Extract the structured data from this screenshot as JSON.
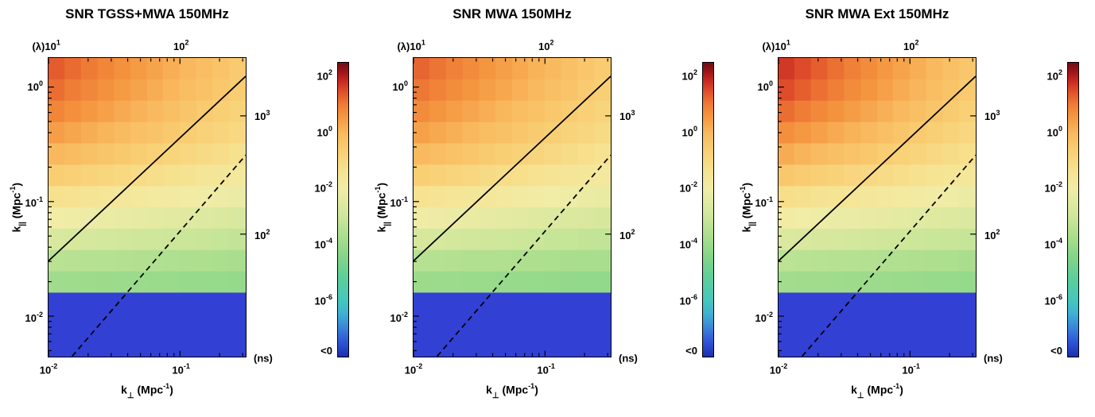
{
  "page": {
    "background": "#ffffff"
  },
  "labels": {
    "xlabel": {
      "pre": "k",
      "sub": "⊥",
      "mid": " (Mpc",
      "sup": "-1",
      "post": ")"
    },
    "ylabel": {
      "pre": "k",
      "sub": "||",
      "mid": " (Mpc",
      "sup": "-1",
      "post": ")"
    },
    "top_prefix": "(λ)",
    "right_unit": "(ns)"
  },
  "colorbar": {
    "scale": "log10(SNR)",
    "vmin": -8,
    "vmax": 2.5,
    "ticks": [
      {
        "base": "10",
        "exp": "2",
        "v": 2
      },
      {
        "base": "10",
        "exp": "0",
        "v": 0
      },
      {
        "base": "10",
        "exp": "-2",
        "v": -2
      },
      {
        "base": "10",
        "exp": "-4",
        "v": -4
      },
      {
        "base": "10",
        "exp": "-6",
        "v": -6
      }
    ],
    "below_label": "<0",
    "below_color": "#3340d4",
    "stops": [
      {
        "t": 0.0,
        "c": "#1b2fae"
      },
      {
        "t": 0.05,
        "c": "#2f54d8"
      },
      {
        "t": 0.1,
        "c": "#3a86d8"
      },
      {
        "t": 0.15,
        "c": "#3fb4d2"
      },
      {
        "t": 0.19,
        "c": "#44c7bd"
      },
      {
        "t": 0.27,
        "c": "#5ecf9a"
      },
      {
        "t": 0.33,
        "c": "#7ed489"
      },
      {
        "t": 0.4,
        "c": "#a5dd8c"
      },
      {
        "t": 0.48,
        "c": "#cfe79b"
      },
      {
        "t": 0.57,
        "c": "#f1eca6"
      },
      {
        "t": 0.63,
        "c": "#f6e392"
      },
      {
        "t": 0.7,
        "c": "#f9cf74"
      },
      {
        "t": 0.76,
        "c": "#f9b95e"
      },
      {
        "t": 0.82,
        "c": "#f4953f"
      },
      {
        "t": 0.86,
        "c": "#ee7a35"
      },
      {
        "t": 0.9,
        "c": "#e1512b"
      },
      {
        "t": 0.94,
        "c": "#c62721"
      },
      {
        "t": 0.97,
        "c": "#9c1418"
      },
      {
        "t": 1.0,
        "c": "#6f0d16"
      }
    ]
  },
  "chart_data": [
    {
      "type": "heatmap",
      "title": "SNR TGSS+MWA 150MHz",
      "xlabel": "k_perp (Mpc^-1)",
      "ylabel": "k_parallel (Mpc^-1)",
      "top_axis_unit": "(λ)",
      "right_axis_unit": "(ns)",
      "values": "log10(SNR), rows top-to-bottom, each row [left,right] gradient, null = below 0 (blue)",
      "x_log_range": [
        -2,
        -0.5
      ],
      "y_log_range": [
        -2.35,
        0.25
      ],
      "x_ticks": [
        {
          "base": "10",
          "exp": "-2",
          "v": -2
        },
        {
          "base": "10",
          "exp": "-1",
          "v": -1
        }
      ],
      "y_ticks": [
        {
          "base": "10",
          "exp": "0",
          "v": 0
        },
        {
          "base": "10",
          "exp": "-1",
          "v": -1
        },
        {
          "base": "10",
          "exp": "-2",
          "v": -2
        }
      ],
      "top_axis": {
        "ticks": [
          {
            "base": "10",
            "exp": "1",
            "frac": 0.0
          },
          {
            "base": "10",
            "exp": "2",
            "frac": 0.667
          }
        ]
      },
      "right_axis": {
        "ticks": [
          {
            "base": "10",
            "exp": "3",
            "frac": 0.193
          },
          {
            "base": "10",
            "exp": "2",
            "frac": 0.59
          }
        ],
        "unit_frac": 1.0
      },
      "cols": 12,
      "rows_log10_snr": [
        [
          1.35,
          -0.5
        ],
        [
          1.15,
          -0.6
        ],
        [
          0.85,
          -0.8
        ],
        [
          0.45,
          -1.0
        ],
        [
          0.0,
          -1.3
        ],
        [
          -0.6,
          -1.7
        ],
        [
          -1.3,
          -2.2
        ],
        [
          -2.0,
          -2.7
        ],
        [
          -2.7,
          -3.2
        ],
        [
          -3.4,
          -3.7
        ],
        [
          -3.9,
          -4.1
        ],
        null,
        null,
        null
      ],
      "lines": {
        "solid_xfrac": [
          0,
          1
        ],
        "solid_yfrac": [
          0.68,
          0.06
        ],
        "dashed_xfrac": [
          0.12,
          1
        ],
        "dashed_yfrac": [
          1.0,
          0.325
        ]
      }
    },
    {
      "type": "heatmap",
      "title": "SNR MWA 150MHz",
      "xlabel": "k_perp (Mpc^-1)",
      "ylabel": "k_parallel (Mpc^-1)",
      "top_axis_unit": "(λ)",
      "right_axis_unit": "(ns)",
      "values": "log10(SNR), rows top-to-bottom, each row [left,right] gradient, null = below 0 (blue)",
      "x_log_range": [
        -2,
        -0.5
      ],
      "y_log_range": [
        -2.35,
        0.25
      ],
      "x_ticks": [
        {
          "base": "10",
          "exp": "-2",
          "v": -2
        },
        {
          "base": "10",
          "exp": "-1",
          "v": -1
        }
      ],
      "y_ticks": [
        {
          "base": "10",
          "exp": "0",
          "v": 0
        },
        {
          "base": "10",
          "exp": "-1",
          "v": -1
        },
        {
          "base": "10",
          "exp": "-2",
          "v": -2
        }
      ],
      "top_axis": {
        "ticks": [
          {
            "base": "10",
            "exp": "1",
            "frac": 0.0
          },
          {
            "base": "10",
            "exp": "2",
            "frac": 0.667
          }
        ]
      },
      "right_axis": {
        "ticks": [
          {
            "base": "10",
            "exp": "3",
            "frac": 0.193
          },
          {
            "base": "10",
            "exp": "2",
            "frac": 0.59
          }
        ],
        "unit_frac": 1.0
      },
      "cols": 12,
      "rows_log10_snr": [
        [
          1.25,
          -0.55
        ],
        [
          1.05,
          -0.65
        ],
        [
          0.75,
          -0.85
        ],
        [
          0.4,
          -1.05
        ],
        [
          -0.05,
          -1.35
        ],
        [
          -0.65,
          -1.75
        ],
        [
          -1.35,
          -2.25
        ],
        [
          -2.05,
          -2.75
        ],
        [
          -2.75,
          -3.25
        ],
        [
          -3.45,
          -3.75
        ],
        [
          -3.95,
          -4.15
        ],
        null,
        null,
        null
      ],
      "lines": {
        "solid_xfrac": [
          0,
          1
        ],
        "solid_yfrac": [
          0.68,
          0.06
        ],
        "dashed_xfrac": [
          0.12,
          1
        ],
        "dashed_yfrac": [
          1.0,
          0.325
        ]
      }
    },
    {
      "type": "heatmap",
      "title": "SNR MWA Ext 150MHz",
      "xlabel": "k_perp (Mpc^-1)",
      "ylabel": "k_parallel (Mpc^-1)",
      "top_axis_unit": "(λ)",
      "right_axis_unit": "(ns)",
      "values": "log10(SNR), rows top-to-bottom, each row [left,right] gradient, null = below 0 (blue)",
      "x_log_range": [
        -2,
        -0.5
      ],
      "y_log_range": [
        -2.35,
        0.25
      ],
      "x_ticks": [
        {
          "base": "10",
          "exp": "-2",
          "v": -2
        },
        {
          "base": "10",
          "exp": "-1",
          "v": -1
        }
      ],
      "y_ticks": [
        {
          "base": "10",
          "exp": "0",
          "v": 0
        },
        {
          "base": "10",
          "exp": "-1",
          "v": -1
        },
        {
          "base": "10",
          "exp": "-2",
          "v": -2
        }
      ],
      "top_axis": {
        "ticks": [
          {
            "base": "10",
            "exp": "1",
            "frac": 0.0
          },
          {
            "base": "10",
            "exp": "2",
            "frac": 0.667
          }
        ]
      },
      "right_axis": {
        "ticks": [
          {
            "base": "10",
            "exp": "3",
            "frac": 0.193
          },
          {
            "base": "10",
            "exp": "2",
            "frac": 0.59
          }
        ],
        "unit_frac": 1.0
      },
      "cols": 12,
      "rows_log10_snr": [
        [
          1.7,
          -0.4
        ],
        [
          1.5,
          -0.5
        ],
        [
          1.15,
          -0.7
        ],
        [
          0.7,
          -0.95
        ],
        [
          0.2,
          -1.25
        ],
        [
          -0.45,
          -1.65
        ],
        [
          -1.2,
          -2.15
        ],
        [
          -1.95,
          -2.65
        ],
        [
          -2.65,
          -3.15
        ],
        [
          -3.35,
          -3.7
        ],
        [
          -3.85,
          -4.1
        ],
        null,
        null,
        null
      ],
      "lines": {
        "solid_xfrac": [
          0,
          1
        ],
        "solid_yfrac": [
          0.68,
          0.06
        ],
        "dashed_xfrac": [
          0.12,
          1
        ],
        "dashed_yfrac": [
          1.0,
          0.325
        ]
      }
    }
  ]
}
